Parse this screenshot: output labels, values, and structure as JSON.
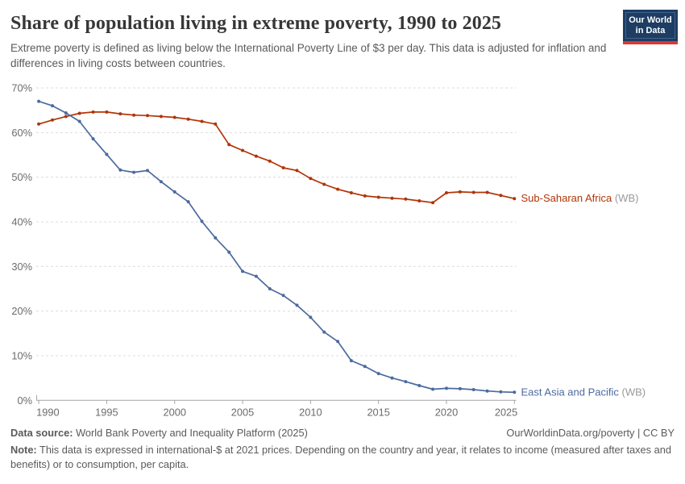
{
  "header": {
    "title": "Share of population living in extreme poverty, 1990 to 2025",
    "subtitle": "Extreme poverty is defined as living below the International Poverty Line of $3 per day. This data is adjusted for inflation and differences in living costs between countries."
  },
  "logo": {
    "line1": "Our World",
    "line2": "in Data",
    "bg_color": "#1d3d63",
    "bar_color": "#d73a34"
  },
  "chart_data": {
    "type": "line",
    "x": [
      1990,
      1991,
      1992,
      1993,
      1994,
      1995,
      1996,
      1997,
      1998,
      1999,
      2000,
      2001,
      2002,
      2003,
      2004,
      2005,
      2006,
      2007,
      2008,
      2009,
      2010,
      2011,
      2012,
      2013,
      2014,
      2015,
      2016,
      2017,
      2018,
      2019,
      2020,
      2021,
      2022,
      2023,
      2024,
      2025
    ],
    "series": [
      {
        "label": "Sub-Saharan Africa",
        "suffix": " (WB)",
        "color": "#b13507",
        "values": [
          61.9,
          62.8,
          63.6,
          64.3,
          64.6,
          64.6,
          64.2,
          63.9,
          63.8,
          63.6,
          63.4,
          63.0,
          62.5,
          61.9,
          57.3,
          56.0,
          54.7,
          53.6,
          52.1,
          51.5,
          49.7,
          48.4,
          47.3,
          46.5,
          45.8,
          45.5,
          45.3,
          45.1,
          44.7,
          44.3,
          46.5,
          46.7,
          46.6,
          46.6,
          45.9,
          45.2
        ]
      },
      {
        "label": "East Asia and Pacific",
        "suffix": " (WB)",
        "color": "#4c6a9f",
        "values": [
          67.0,
          66.0,
          64.4,
          62.5,
          58.6,
          55.1,
          51.6,
          51.1,
          51.5,
          49.0,
          46.7,
          44.5,
          40.1,
          36.4,
          33.2,
          28.9,
          27.8,
          25.0,
          23.5,
          21.3,
          18.6,
          15.3,
          13.2,
          8.9,
          7.6,
          6.0,
          5.0,
          4.2,
          3.3,
          2.5,
          2.7,
          2.6,
          2.4,
          2.1,
          1.9,
          1.8
        ]
      }
    ],
    "xticks": [
      1990,
      1995,
      2000,
      2005,
      2010,
      2015,
      2020,
      2025
    ],
    "yticks": [
      0,
      10,
      20,
      30,
      40,
      50,
      60,
      70
    ],
    "ytick_format": "{v}%",
    "ylim": [
      0,
      70
    ],
    "xlim": [
      1990,
      2025
    ],
    "grid": true,
    "legend_position": "end-of-line",
    "suffix_color": "#999999",
    "grid_color": "#dcdcdc",
    "axis_color": "#a5a5a5",
    "tick_label_color": "#6b6b6b"
  },
  "footer": {
    "datasource_label": "Data source:",
    "datasource_text": " World Bank Poverty and Inequality Platform (2025)",
    "rights": "OurWorldinData.org/poverty | CC BY",
    "note_label": "Note:",
    "note_text": " This data is expressed in international-$ at 2021 prices. Depending on the country and year, it relates to income (measured after taxes and benefits) or to consumption, per capita."
  }
}
